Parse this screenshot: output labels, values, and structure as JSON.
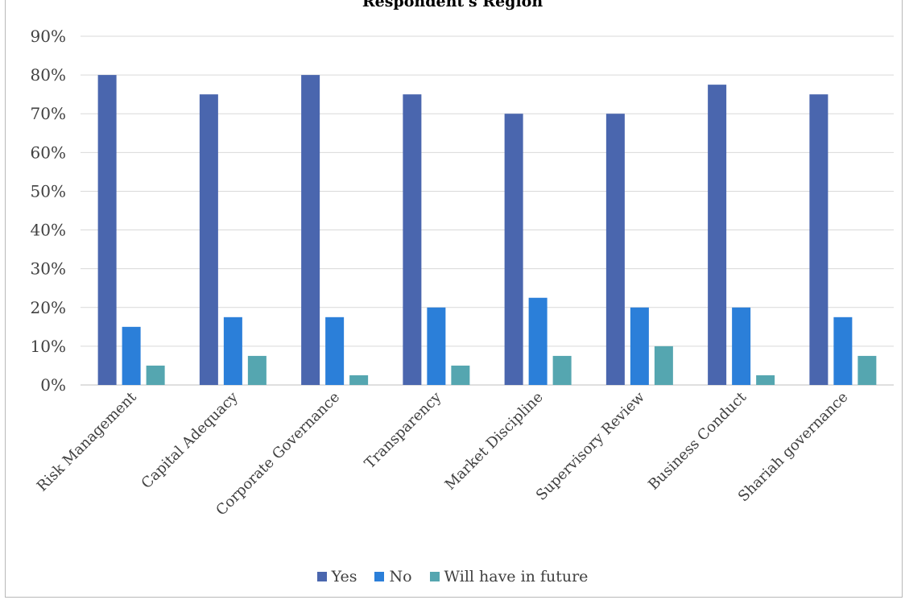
{
  "chart_data": {
    "type": "bar",
    "title": "Respondent's Region",
    "categories": [
      "Risk Management",
      "Capital Adequacy",
      "Corporate Governance",
      "Transparency",
      "Market Discipline",
      "Supervisory Review",
      "Business Conduct",
      "Shariah governance"
    ],
    "series": [
      {
        "name": "Yes",
        "color": "#4a66ae",
        "values": [
          80,
          75,
          80,
          75,
          70,
          70,
          77.5,
          75
        ]
      },
      {
        "name": "No",
        "color": "#2b7fd9",
        "values": [
          15,
          17.5,
          17.5,
          20,
          22.5,
          20,
          20,
          17.5
        ]
      },
      {
        "name": "Will have in future",
        "color": "#55a6b0",
        "values": [
          5,
          7.5,
          2.5,
          5,
          7.5,
          10,
          2.5,
          7.5
        ]
      }
    ],
    "ylim": [
      0,
      90
    ],
    "yticks": [
      "0%",
      "10%",
      "20%",
      "30%",
      "40%",
      "50%",
      "60%",
      "70%",
      "80%",
      "90%"
    ],
    "grid": true,
    "legend_position": "bottom"
  }
}
